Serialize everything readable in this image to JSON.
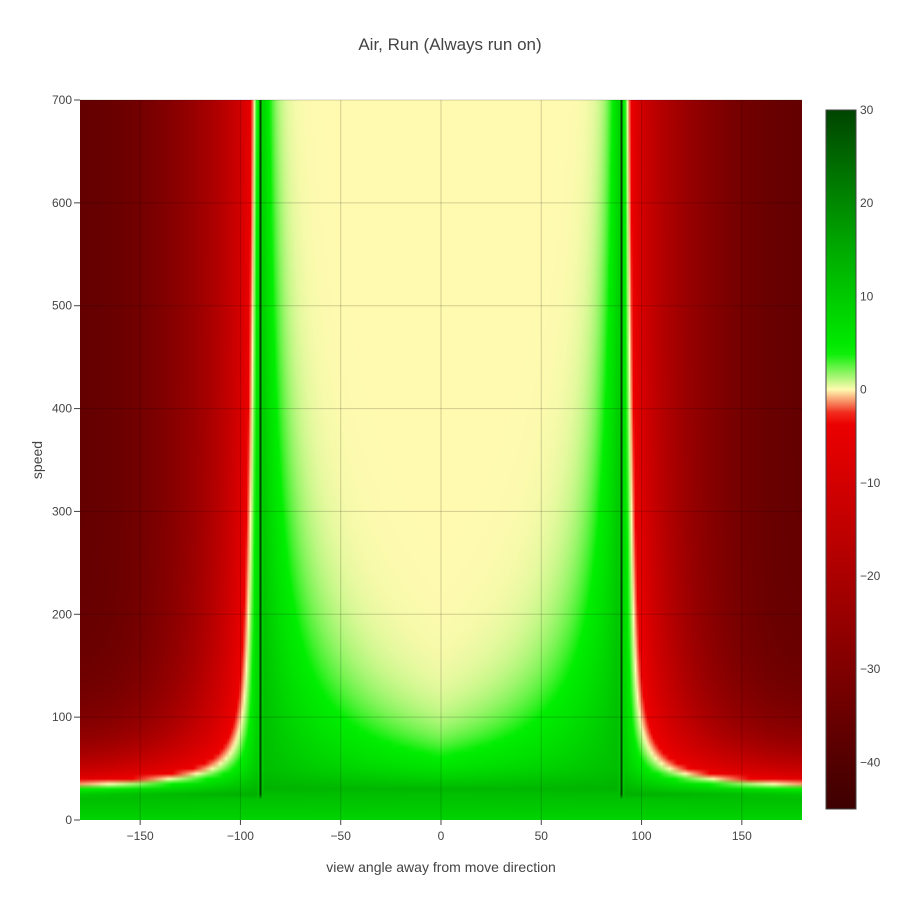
{
  "chart_data": {
    "type": "heatmap",
    "title": "Air, Run (Always run on)",
    "xlabel": "view angle away from move direction",
    "ylabel": "speed",
    "xlim": [
      -180,
      180
    ],
    "ylim": [
      0,
      700
    ],
    "x_ticks": [
      -150,
      -100,
      -50,
      0,
      50,
      100,
      150
    ],
    "x_tick_labels": [
      "−150",
      "−100",
      "−50",
      "0",
      "50",
      "100",
      "150"
    ],
    "y_ticks": [
      0,
      100,
      200,
      300,
      400,
      500,
      600,
      700
    ],
    "y_tick_labels": [
      "0",
      "100",
      "200",
      "300",
      "400",
      "500",
      "600",
      "700"
    ],
    "grid": true,
    "colorbar": {
      "min": -45,
      "max": 30,
      "ticks": [
        30,
        20,
        10,
        0,
        -10,
        -20,
        -30,
        -40
      ],
      "tick_labels": [
        "30",
        "20",
        "10",
        "0",
        "−10",
        "−20",
        "−30",
        "−40"
      ],
      "colorscale": [
        {
          "value": -45,
          "color": "#3d0000"
        },
        {
          "value": -30,
          "color": "#800000"
        },
        {
          "value": -15,
          "color": "#c00000"
        },
        {
          "value": -3,
          "color": "#ee0000"
        },
        {
          "value": 0,
          "color": "#fffab0"
        },
        {
          "value": 4,
          "color": "#00ee00"
        },
        {
          "value": 15,
          "color": "#00aa00"
        },
        {
          "value": 30,
          "color": "#004400"
        }
      ]
    },
    "features": {
      "zero_band_x": [
        -90,
        90
      ],
      "peak_gain": 12,
      "max_loss": -40,
      "floor_speed_at_0deg": 28,
      "floor_speed_at_180deg": 22
    }
  }
}
